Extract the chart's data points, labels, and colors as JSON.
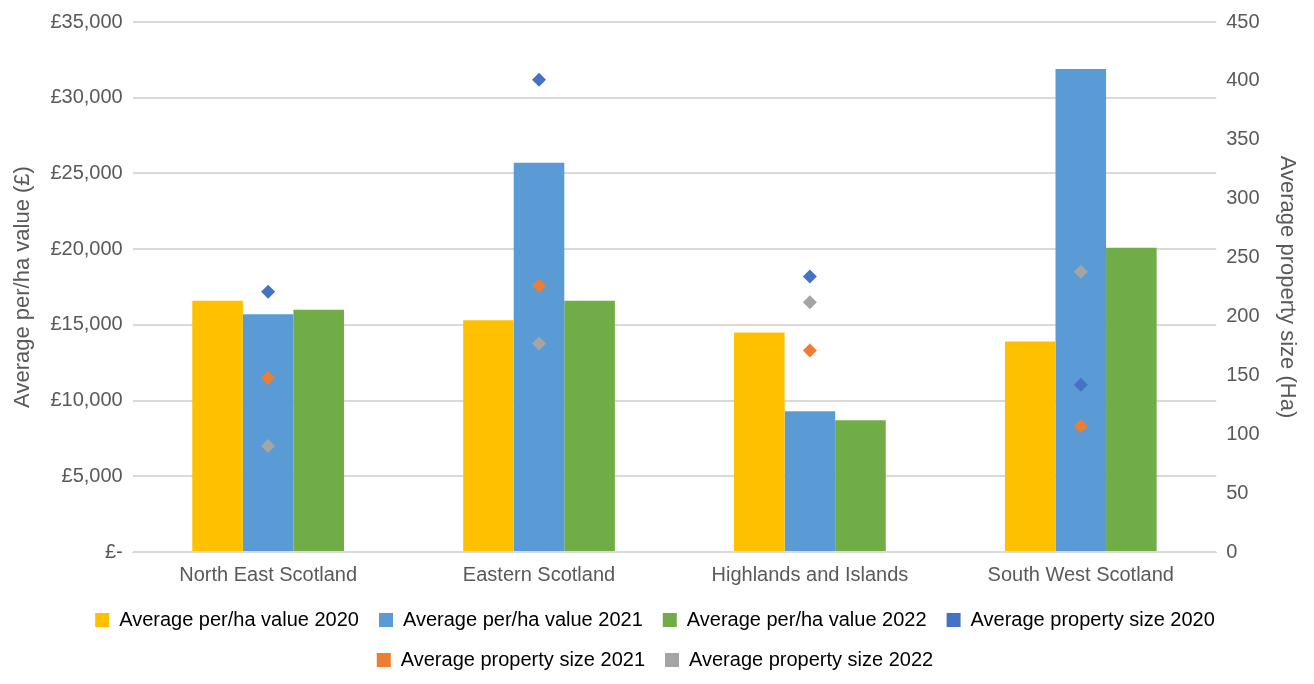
{
  "chart_data": {
    "type": "bar",
    "ylabel": "Average per/ha value (£)",
    "y2label": "Average property size (Ha)",
    "categories": [
      "North East Scotland",
      "Eastern Scotland",
      "Highlands and Islands",
      "South West Scotland"
    ],
    "series": [
      {
        "name": "Average per/ha value 2020",
        "color": "#ffc000",
        "values": [
          16600,
          15300,
          14500,
          13900
        ]
      },
      {
        "name": "Average per/ha value 2021",
        "color": "#5b9bd5",
        "values": [
          15700,
          25700,
          9300,
          31900
        ]
      },
      {
        "name": "Average per/ha value 2022",
        "color": "#70ad47",
        "values": [
          16000,
          16600,
          8700,
          20100
        ]
      },
      {
        "name": "Average property size 2020",
        "type": "scatter",
        "axis": "y2",
        "marker": "diamond",
        "color": "#4472c4",
        "x": [
          "North East Scotland",
          "Eastern Scotland",
          "Highlands and Islands",
          "South West Scotland"
        ],
        "values": [
          221,
          401,
          234,
          142
        ]
      },
      {
        "name": "Average property size 2021",
        "type": "scatter",
        "axis": "y2",
        "marker": "diamond",
        "color": "#ed7d31",
        "x": [
          "North East Scotland",
          "Eastern Scotland",
          "Highlands and Islands",
          "South West Scotland"
        ],
        "values": [
          148,
          226,
          171,
          107
        ]
      },
      {
        "name": "Average property size 2022",
        "type": "scatter",
        "axis": "y2",
        "marker": "diamond",
        "color": "#a5a5a5",
        "x": [
          "North East Scotland",
          "Eastern Scotland",
          "Highlands and Islands",
          "South West Scotland"
        ],
        "values": [
          90,
          177,
          212,
          238
        ]
      }
    ],
    "ylim": [
      0,
      35000
    ],
    "yticks": [
      {
        "value": 0,
        "label": "£-"
      },
      {
        "value": 5000,
        "label": "£5,000"
      },
      {
        "value": 10000,
        "label": "£10,000"
      },
      {
        "value": 15000,
        "label": "£15,000"
      },
      {
        "value": 20000,
        "label": "£20,000"
      },
      {
        "value": 25000,
        "label": "£25,000"
      },
      {
        "value": 30000,
        "label": "£30,000"
      },
      {
        "value": 35000,
        "label": "£35,000"
      }
    ],
    "y2lim": [
      0,
      450
    ],
    "y2ticks": [
      0,
      50,
      100,
      150,
      200,
      250,
      300,
      350,
      400,
      450
    ],
    "grid": "y",
    "legend": "bottom"
  }
}
